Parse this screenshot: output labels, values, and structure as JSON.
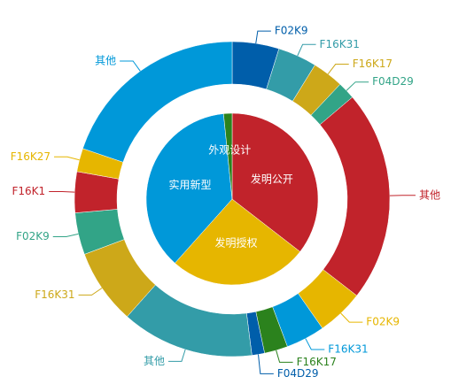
{
  "chart_data": {
    "type": "nested-pie",
    "inner": {
      "labels": [
        "发明公开",
        "发明授权",
        "实用新型",
        "外观设计"
      ],
      "values": [
        35.5,
        26.1,
        36.8,
        1.6
      ],
      "colors": [
        "#c1232b",
        "#e6b600",
        "#0098d9",
        "#2b821d"
      ]
    },
    "outer": {
      "labels": [
        "F02K9",
        "F16K31",
        "F16K17",
        "F04D29",
        "其他",
        "F02K9",
        "F16K31",
        "F16K17",
        "F04D29",
        "其他",
        "F16K31",
        "F02K9",
        "F16K1",
        "F16K27",
        "其他"
      ],
      "values": [
        4.8,
        4.0,
        3.2,
        1.8,
        21.7,
        4.8,
        4.0,
        2.4,
        1.3,
        13.6,
        7.7,
        4.3,
        4.2,
        2.4,
        19.8
      ],
      "colors": [
        "#005eaa",
        "#339ca8",
        "#cda819",
        "#32a487",
        "#c1232b",
        "#e6b600",
        "#0098d9",
        "#2b821d",
        "#005eaa",
        "#339ca8",
        "#cda819",
        "#32a487",
        "#c1232b",
        "#e6b600",
        "#0098d9"
      ]
    }
  }
}
